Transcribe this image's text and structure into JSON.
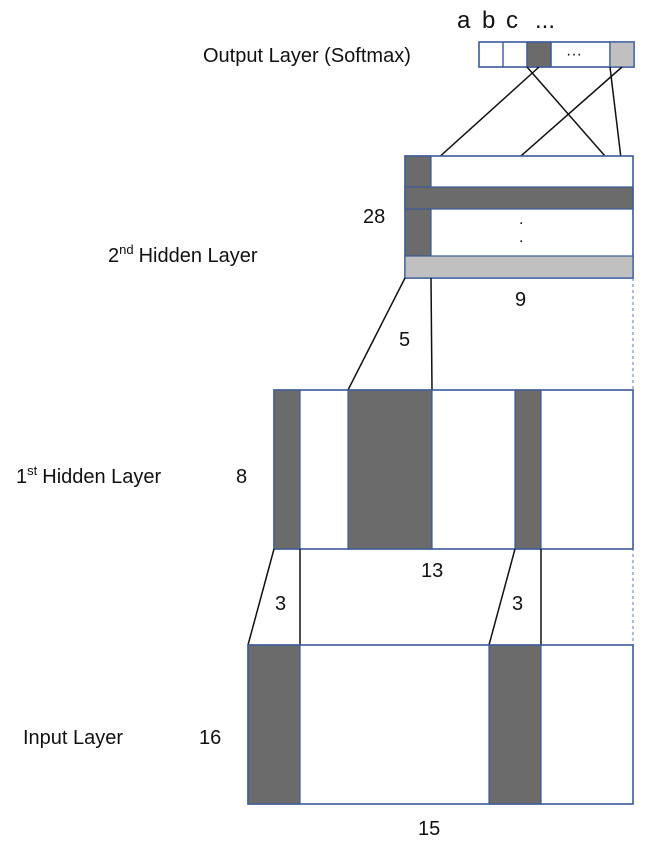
{
  "output_layer": {
    "label": "Output Layer (Softmax)",
    "letters": [
      "a",
      "b",
      "c",
      "..."
    ],
    "ellipsis": "···"
  },
  "hidden2": {
    "label_main": "Hidden Layer",
    "label_ordinal": "2",
    "label_suffix": "nd",
    "height_label": "28",
    "width_label": "9",
    "vertical_dots": "."
  },
  "hidden1": {
    "label_main": "Hidden Layer",
    "label_ordinal": "1",
    "label_suffix": "st",
    "height_label": "8",
    "width_label": "13",
    "kernel_label": "5"
  },
  "input_layer": {
    "label": "Input Layer",
    "height_label": "16",
    "width_label": "15",
    "kernel_label_left": "3",
    "kernel_label_right": "3"
  },
  "colors": {
    "border": "#3a5a9c",
    "dark_fill": "#6b6b6b",
    "light_fill": "#c0c0c0",
    "dashed": "#5b7bc0"
  }
}
